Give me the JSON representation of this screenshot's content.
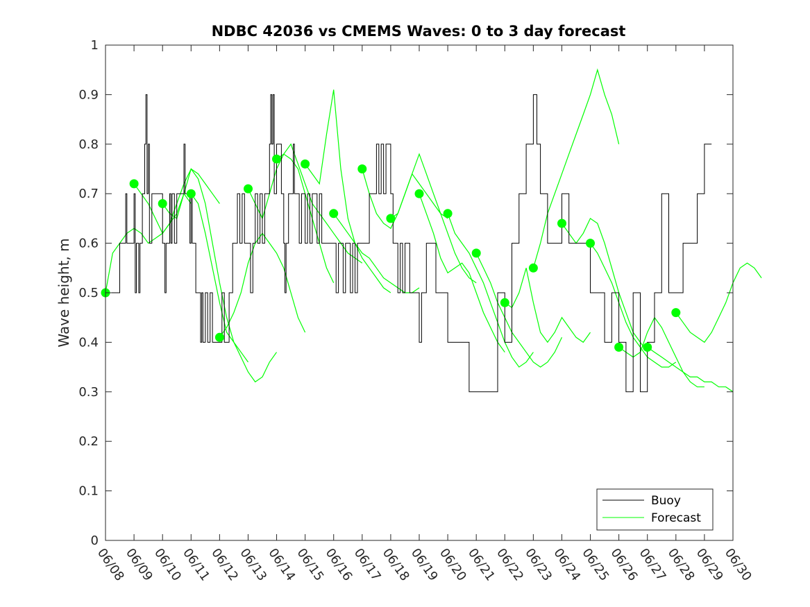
{
  "chart_data": {
    "type": "line",
    "title": "NDBC 42036 vs CMEMS Waves: 0 to 3 day forecast",
    "xlabel": "",
    "ylabel": "Wave height, m",
    "xlim": [
      "06/08",
      "06/30"
    ],
    "ylim": [
      0,
      1
    ],
    "x_ticks": [
      "06/08",
      "06/09",
      "06/10",
      "06/11",
      "06/12",
      "06/13",
      "06/14",
      "06/15",
      "06/16",
      "06/17",
      "06/18",
      "06/19",
      "06/20",
      "06/21",
      "06/22",
      "06/23",
      "06/24",
      "06/25",
      "06/26",
      "06/27",
      "06/28",
      "06/29",
      "06/30"
    ],
    "y_ticks": [
      "0",
      "0.1",
      "0.2",
      "0.3",
      "0.4",
      "0.5",
      "0.6",
      "0.7",
      "0.8",
      "0.9",
      "1"
    ],
    "grid": false,
    "legend_position": "bottom-right",
    "legend": [
      {
        "label": "Buoy",
        "color": "#000000"
      },
      {
        "label": "Forecast",
        "color": "#00ff00"
      }
    ],
    "series": [
      {
        "name": "Buoy",
        "color": "#000000",
        "points": [
          [
            "06/08 00:00",
            0.5
          ],
          [
            "06/08 06:00",
            0.5
          ],
          [
            "06/08 12:00",
            0.6
          ],
          [
            "06/08 15:00",
            0.6
          ],
          [
            "06/08 17:00",
            0.7
          ],
          [
            "06/08 18:00",
            0.6
          ],
          [
            "06/08 21:00",
            0.6
          ],
          [
            "06/09 00:00",
            0.7
          ],
          [
            "06/09 01:00",
            0.5
          ],
          [
            "06/09 02:00",
            0.6
          ],
          [
            "06/09 04:00",
            0.5
          ],
          [
            "06/09 05:00",
            0.6
          ],
          [
            "06/09 07:00",
            0.7
          ],
          [
            "06/09 08:00",
            0.7
          ],
          [
            "06/09 09:00",
            0.8
          ],
          [
            "06/09 10:00",
            0.9
          ],
          [
            "06/09 11:00",
            0.7
          ],
          [
            "06/09 12:00",
            0.8
          ],
          [
            "06/09 13:00",
            0.6
          ],
          [
            "06/09 15:00",
            0.7
          ],
          [
            "06/09 21:00",
            0.7
          ],
          [
            "06/10 00:00",
            0.6
          ],
          [
            "06/10 01:00",
            0.6
          ],
          [
            "06/10 02:00",
            0.5
          ],
          [
            "06/10 03:00",
            0.6
          ],
          [
            "06/10 05:00",
            0.6
          ],
          [
            "06/10 06:00",
            0.7
          ],
          [
            "06/10 07:00",
            0.6
          ],
          [
            "06/10 08:00",
            0.7
          ],
          [
            "06/10 10:00",
            0.6
          ],
          [
            "06/10 12:00",
            0.7
          ],
          [
            "06/10 15:00",
            0.7
          ],
          [
            "06/10 18:00",
            0.8
          ],
          [
            "06/10 19:00",
            0.7
          ],
          [
            "06/10 21:00",
            0.7
          ],
          [
            "06/10 23:00",
            0.6
          ],
          [
            "06/11 00:00",
            0.7
          ],
          [
            "06/11 01:00",
            0.6
          ],
          [
            "06/11 02:00",
            0.6
          ],
          [
            "06/11 04:00",
            0.5
          ],
          [
            "06/11 06:00",
            0.5
          ],
          [
            "06/11 08:00",
            0.4
          ],
          [
            "06/11 09:00",
            0.5
          ],
          [
            "06/11 10:00",
            0.4
          ],
          [
            "06/11 12:00",
            0.5
          ],
          [
            "06/11 14:00",
            0.4
          ],
          [
            "06/11 16:00",
            0.5
          ],
          [
            "06/11 18:00",
            0.4
          ],
          [
            "06/11 21:00",
            0.4
          ],
          [
            "06/12 00:00",
            0.4
          ],
          [
            "06/12 02:00",
            0.5
          ],
          [
            "06/12 04:00",
            0.4
          ],
          [
            "06/12 06:00",
            0.4
          ],
          [
            "06/12 08:00",
            0.5
          ],
          [
            "06/12 10:00",
            0.5
          ],
          [
            "06/12 11:00",
            0.6
          ],
          [
            "06/12 13:00",
            0.6
          ],
          [
            "06/12 15:00",
            0.7
          ],
          [
            "06/12 17:00",
            0.6
          ],
          [
            "06/12 19:00",
            0.7
          ],
          [
            "06/12 21:00",
            0.6
          ],
          [
            "06/13 00:00",
            0.6
          ],
          [
            "06/13 02:00",
            0.5
          ],
          [
            "06/13 04:00",
            0.6
          ],
          [
            "06/13 06:00",
            0.7
          ],
          [
            "06/13 08:00",
            0.6
          ],
          [
            "06/13 10:00",
            0.7
          ],
          [
            "06/13 12:00",
            0.6
          ],
          [
            "06/13 14:00",
            0.7
          ],
          [
            "06/13 16:00",
            0.7
          ],
          [
            "06/13 18:00",
            0.8
          ],
          [
            "06/13 19:00",
            0.9
          ],
          [
            "06/13 20:00",
            0.8
          ],
          [
            "06/13 21:00",
            0.9
          ],
          [
            "06/13 22:00",
            0.7
          ],
          [
            "06/14 00:00",
            0.8
          ],
          [
            "06/14 02:00",
            0.8
          ],
          [
            "06/14 04:00",
            0.7
          ],
          [
            "06/14 06:00",
            0.6
          ],
          [
            "06/14 07:00",
            0.5
          ],
          [
            "06/14 08:00",
            0.6
          ],
          [
            "06/14 10:00",
            0.7
          ],
          [
            "06/14 12:00",
            0.7
          ],
          [
            "06/14 14:00",
            0.8
          ],
          [
            "06/14 15:00",
            0.7
          ],
          [
            "06/14 17:00",
            0.7
          ],
          [
            "06/14 19:00",
            0.6
          ],
          [
            "06/14 21:00",
            0.7
          ],
          [
            "06/15 00:00",
            0.6
          ],
          [
            "06/15 02:00",
            0.7
          ],
          [
            "06/15 04:00",
            0.6
          ],
          [
            "06/15 06:00",
            0.7
          ],
          [
            "06/15 08:00",
            0.7
          ],
          [
            "06/15 10:00",
            0.6
          ],
          [
            "06/15 12:00",
            0.7
          ],
          [
            "06/15 14:00",
            0.6
          ],
          [
            "06/15 16:00",
            0.6
          ],
          [
            "06/15 18:00",
            0.6
          ],
          [
            "06/15 20:00",
            0.6
          ],
          [
            "06/16 00:00",
            0.6
          ],
          [
            "06/16 02:00",
            0.5
          ],
          [
            "06/16 04:00",
            0.6
          ],
          [
            "06/16 06:00",
            0.6
          ],
          [
            "06/16 08:00",
            0.5
          ],
          [
            "06/16 10:00",
            0.6
          ],
          [
            "06/16 12:00",
            0.6
          ],
          [
            "06/16 14:00",
            0.5
          ],
          [
            "06/16 16:00",
            0.6
          ],
          [
            "06/16 18:00",
            0.5
          ],
          [
            "06/16 20:00",
            0.6
          ],
          [
            "06/17 00:00",
            0.6
          ],
          [
            "06/17 02:00",
            0.6
          ],
          [
            "06/17 04:00",
            0.6
          ],
          [
            "06/17 06:00",
            0.7
          ],
          [
            "06/17 08:00",
            0.7
          ],
          [
            "06/17 10:00",
            0.7
          ],
          [
            "06/17 12:00",
            0.8
          ],
          [
            "06/17 14:00",
            0.7
          ],
          [
            "06/17 16:00",
            0.8
          ],
          [
            "06/17 18:00",
            0.7
          ],
          [
            "06/17 20:00",
            0.8
          ],
          [
            "06/18 00:00",
            0.7
          ],
          [
            "06/18 02:00",
            0.6
          ],
          [
            "06/18 04:00",
            0.6
          ],
          [
            "06/18 06:00",
            0.5
          ],
          [
            "06/18 08:00",
            0.6
          ],
          [
            "06/18 10:00",
            0.5
          ],
          [
            "06/18 12:00",
            0.6
          ],
          [
            "06/18 16:00",
            0.5
          ],
          [
            "06/18 20:00",
            0.5
          ],
          [
            "06/19 00:00",
            0.4
          ],
          [
            "06/19 02:00",
            0.5
          ],
          [
            "06/19 06:00",
            0.6
          ],
          [
            "06/19 10:00",
            0.6
          ],
          [
            "06/19 14:00",
            0.5
          ],
          [
            "06/19 18:00",
            0.5
          ],
          [
            "06/20 00:00",
            0.4
          ],
          [
            "06/20 06:00",
            0.4
          ],
          [
            "06/20 12:00",
            0.4
          ],
          [
            "06/20 18:00",
            0.3
          ],
          [
            "06/21 00:00",
            0.3
          ],
          [
            "06/21 06:00",
            0.3
          ],
          [
            "06/21 12:00",
            0.3
          ],
          [
            "06/21 18:00",
            0.5
          ],
          [
            "06/22 00:00",
            0.4
          ],
          [
            "06/22 06:00",
            0.6
          ],
          [
            "06/22 12:00",
            0.7
          ],
          [
            "06/22 18:00",
            0.8
          ],
          [
            "06/23 00:00",
            0.9
          ],
          [
            "06/23 03:00",
            0.8
          ],
          [
            "06/23 06:00",
            0.7
          ],
          [
            "06/23 12:00",
            0.6
          ],
          [
            "06/23 18:00",
            0.6
          ],
          [
            "06/24 00:00",
            0.7
          ],
          [
            "06/24 06:00",
            0.6
          ],
          [
            "06/24 12:00",
            0.6
          ],
          [
            "06/24 18:00",
            0.6
          ],
          [
            "06/25 00:00",
            0.5
          ],
          [
            "06/25 06:00",
            0.5
          ],
          [
            "06/25 12:00",
            0.4
          ],
          [
            "06/25 18:00",
            0.5
          ],
          [
            "06/26 00:00",
            0.4
          ],
          [
            "06/26 06:00",
            0.3
          ],
          [
            "06/26 12:00",
            0.5
          ],
          [
            "06/26 18:00",
            0.3
          ],
          [
            "06/27 00:00",
            0.4
          ],
          [
            "06/27 06:00",
            0.5
          ],
          [
            "06/27 12:00",
            0.7
          ],
          [
            "06/27 18:00",
            0.5
          ],
          [
            "06/28 00:00",
            0.5
          ],
          [
            "06/28 06:00",
            0.6
          ],
          [
            "06/28 12:00",
            0.6
          ],
          [
            "06/28 18:00",
            0.7
          ],
          [
            "06/29 00:00",
            0.8
          ],
          [
            "06/29 06:00",
            0.8
          ]
        ]
      }
    ],
    "forecast_runs": [
      {
        "start": "06/08 00:00",
        "values": [
          0.5,
          0.58,
          0.6,
          0.62,
          0.63,
          0.62,
          0.6,
          0.61,
          0.62,
          0.64,
          0.66,
          0.7,
          0.68
        ]
      },
      {
        "start": "06/09 00:00",
        "values": [
          0.72,
          0.7,
          0.68,
          0.65,
          0.62,
          0.64,
          0.68,
          0.72,
          0.75,
          0.74,
          0.72,
          0.7,
          0.68
        ]
      },
      {
        "start": "06/10 00:00",
        "values": [
          0.68,
          0.66,
          0.65,
          0.7,
          0.75,
          0.73,
          0.68,
          0.6,
          0.52,
          0.45,
          0.4,
          0.38,
          0.36
        ]
      },
      {
        "start": "06/11 00:00",
        "values": [
          0.7,
          0.68,
          0.62,
          0.55,
          0.48,
          0.42,
          0.4,
          0.37,
          0.34,
          0.32,
          0.33,
          0.36,
          0.38
        ]
      },
      {
        "start": "06/12 00:00",
        "values": [
          0.41,
          0.43,
          0.46,
          0.5,
          0.56,
          0.6,
          0.62,
          0.6,
          0.58,
          0.55,
          0.5,
          0.45,
          0.42
        ]
      },
      {
        "start": "06/13 00:00",
        "values": [
          0.71,
          0.68,
          0.65,
          0.7,
          0.75,
          0.78,
          0.77,
          0.75,
          0.7,
          0.65,
          0.6,
          0.55,
          0.52
        ]
      },
      {
        "start": "06/14 00:00",
        "values": [
          0.77,
          0.78,
          0.8,
          0.76,
          0.72,
          0.68,
          0.66,
          0.64,
          0.62,
          0.6,
          0.58,
          0.57,
          0.56
        ]
      },
      {
        "start": "06/15 00:00",
        "values": [
          0.76,
          0.74,
          0.72,
          0.82,
          0.91,
          0.75,
          0.65,
          0.6,
          0.57,
          0.55,
          0.53,
          0.51,
          0.5
        ]
      },
      {
        "start": "06/16 00:00",
        "values": [
          0.66,
          0.64,
          0.62,
          0.6,
          0.58,
          0.57,
          0.55,
          0.53,
          0.52,
          0.51,
          0.5,
          0.5,
          0.51
        ]
      },
      {
        "start": "06/17 00:00",
        "values": [
          0.75,
          0.7,
          0.66,
          0.64,
          0.63,
          0.66,
          0.7,
          0.74,
          0.72,
          0.7,
          0.68,
          0.66,
          0.65
        ]
      },
      {
        "start": "06/18 00:00",
        "values": [
          0.65,
          0.66,
          0.7,
          0.74,
          0.78,
          0.74,
          0.7,
          0.66,
          0.62,
          0.58,
          0.55,
          0.53,
          0.52
        ]
      },
      {
        "start": "06/19 00:00",
        "values": [
          0.7,
          0.66,
          0.62,
          0.57,
          0.54,
          0.55,
          0.56,
          0.54,
          0.5,
          0.46,
          0.43,
          0.4,
          0.38
        ]
      },
      {
        "start": "06/20 00:00",
        "values": [
          0.66,
          0.62,
          0.6,
          0.58,
          0.55,
          0.52,
          0.48,
          0.44,
          0.4,
          0.37,
          0.35,
          0.36,
          0.38
        ]
      },
      {
        "start": "06/21 00:00",
        "values": [
          0.58,
          0.55,
          0.52,
          0.48,
          0.45,
          0.42,
          0.4,
          0.38,
          0.36,
          0.35,
          0.36,
          0.38,
          0.41
        ]
      },
      {
        "start": "06/22 00:00",
        "values": [
          0.48,
          0.47,
          0.5,
          0.55,
          0.48,
          0.42,
          0.4,
          0.42,
          0.45,
          0.43,
          0.41,
          0.4,
          0.42
        ]
      },
      {
        "start": "06/23 00:00",
        "values": [
          0.55,
          0.6,
          0.66,
          0.7,
          0.74,
          0.78,
          0.82,
          0.86,
          0.9,
          0.95,
          0.9,
          0.86,
          0.8
        ]
      },
      {
        "start": "06/24 00:00",
        "values": [
          0.64,
          0.62,
          0.6,
          0.62,
          0.65,
          0.64,
          0.6,
          0.55,
          0.5,
          0.46,
          0.42,
          0.4,
          0.38
        ]
      },
      {
        "start": "06/25 00:00",
        "values": [
          0.6,
          0.58,
          0.55,
          0.52,
          0.48,
          0.44,
          0.41,
          0.39,
          0.37,
          0.36,
          0.35,
          0.35,
          0.36
        ]
      },
      {
        "start": "06/26 00:00",
        "values": [
          0.39,
          0.38,
          0.37,
          0.38,
          0.42,
          0.45,
          0.43,
          0.4,
          0.37,
          0.34,
          0.32,
          0.31,
          0.31
        ]
      },
      {
        "start": "06/27 00:00",
        "values": [
          0.39,
          0.38,
          0.37,
          0.36,
          0.35,
          0.34,
          0.33,
          0.33,
          0.32,
          0.32,
          0.31,
          0.31,
          0.3
        ]
      },
      {
        "start": "06/28 00:00",
        "values": [
          0.46,
          0.44,
          0.42,
          0.41,
          0.4,
          0.42,
          0.45,
          0.48,
          0.52,
          0.55,
          0.56,
          0.55,
          0.53
        ]
      }
    ],
    "forecast_color": "#00ff00"
  }
}
